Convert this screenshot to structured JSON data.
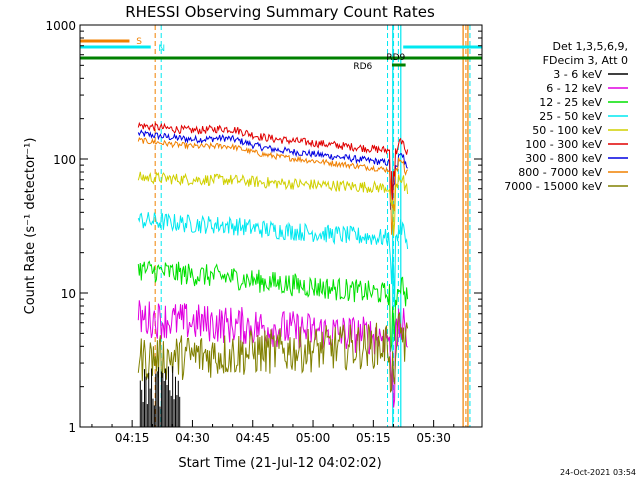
{
  "chart_data": {
    "type": "line",
    "title": "RHESSI Observing Summary Count Rates",
    "xlabel": "Start Time (21-Jul-12 04:02:02)",
    "ylabel": "Count Rate (s⁻¹ detector⁻¹)",
    "yscale": "log",
    "ylim": [
      1,
      1000
    ],
    "xlim_minutes": [
      0,
      100
    ],
    "x_ticks": [
      {
        "label": "04:15",
        "minute": 12.97
      },
      {
        "label": "04:30",
        "minute": 27.97
      },
      {
        "label": "04:45",
        "minute": 42.97
      },
      {
        "label": "05:00",
        "minute": 57.97
      },
      {
        "label": "05:15",
        "minute": 72.97
      },
      {
        "label": "05:30",
        "minute": 87.97
      }
    ],
    "y_ticks": [
      {
        "label": "1",
        "value": 1
      },
      {
        "label": "10",
        "value": 10
      },
      {
        "label": "100",
        "value": 100
      },
      {
        "label": "1000",
        "value": 1000
      }
    ],
    "legend_header": [
      "Det 1,3,5,6,9,",
      "FDecim 3, Att 0"
    ],
    "series": [
      {
        "name": "3 - 6 keV",
        "color": "#000000"
      },
      {
        "name": "6 - 12 keV",
        "color": "#e000e0"
      },
      {
        "name": "12 - 25 keV",
        "color": "#00e000"
      },
      {
        "name": "25 - 50 keV",
        "color": "#00e8f0"
      },
      {
        "name": "50 - 100 keV",
        "color": "#d0d000"
      },
      {
        "name": "100 - 300 keV",
        "color": "#e00000"
      },
      {
        "name": "300 - 800 keV",
        "color": "#0000e0"
      },
      {
        "name": "800 - 7000 keV",
        "color": "#f08000"
      },
      {
        "name": "7000 - 15000 keV",
        "color": "#808000"
      }
    ],
    "flag_labels": {
      "s": "S",
      "n": "N",
      "rd9": "RD9",
      "rd6": "RD6"
    },
    "timestamp": "24-Oct-2021 03:54"
  }
}
